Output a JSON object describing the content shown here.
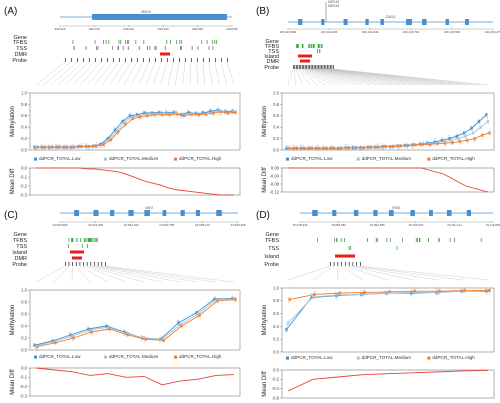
{
  "chart_data": [
    {
      "type": "line",
      "panel_label": "(A)",
      "gene_name": "MSI16",
      "coordinate_ticks": [
        "949,429",
        "949,705",
        "949,941",
        "949,349",
        "949,550",
        "949,658"
      ],
      "track_labels": [
        "Gene",
        "TFBS",
        "TSS",
        "DMR",
        "Probe"
      ],
      "ylabel": "Methylation",
      "diff_ylabel": "Mean Diff",
      "ylim": [
        0.0,
        1.0
      ],
      "yticks": [
        "0.0",
        "0.2",
        "0.4",
        "0.6",
        "0.8",
        "1.0"
      ],
      "diff_ylim": [
        -0.3,
        0.0
      ],
      "diff_yticks": [
        "0.0",
        "-0.1",
        "-0.2",
        "-0.3"
      ],
      "legend": [
        "ddPCR_TOTAL.Low",
        "ddPCR_TOTAL.Medium",
        "ddPCR_TOTAL.High"
      ],
      "series": [
        {
          "name": "ddPCR_TOTAL.Low",
          "values": [
            0.05,
            0.05,
            0.05,
            0.05,
            0.05,
            0.05,
            0.06,
            0.06,
            0.07,
            0.1,
            0.2,
            0.35,
            0.5,
            0.6,
            0.62,
            0.65,
            0.65,
            0.66,
            0.65,
            0.66,
            0.62,
            0.66,
            0.64,
            0.65,
            0.68,
            0.7,
            0.67,
            0.68
          ]
        },
        {
          "name": "ddPCR_TOTAL.Medium",
          "values": [
            0.05,
            0.05,
            0.05,
            0.05,
            0.05,
            0.05,
            0.06,
            0.06,
            0.07,
            0.1,
            0.2,
            0.33,
            0.48,
            0.58,
            0.6,
            0.63,
            0.64,
            0.65,
            0.64,
            0.65,
            0.61,
            0.65,
            0.63,
            0.64,
            0.67,
            0.69,
            0.66,
            0.67
          ]
        },
        {
          "name": "ddPCR_TOTAL.High",
          "values": [
            0.05,
            0.05,
            0.05,
            0.05,
            0.05,
            0.05,
            0.06,
            0.06,
            0.07,
            0.1,
            0.18,
            0.32,
            0.45,
            0.55,
            0.58,
            0.6,
            0.62,
            0.62,
            0.62,
            0.63,
            0.6,
            0.63,
            0.62,
            0.63,
            0.65,
            0.67,
            0.65,
            0.66
          ]
        }
      ],
      "diff": [
        0.0,
        0.0,
        0.0,
        0.0,
        0.0,
        0.0,
        0.0,
        -0.01,
        -0.01,
        -0.02,
        -0.03,
        -0.04,
        -0.06,
        -0.09,
        -0.12,
        -0.15,
        -0.17,
        -0.19,
        -0.22,
        -0.24,
        -0.25,
        -0.26,
        -0.27,
        -0.28,
        -0.29,
        -0.3,
        -0.3,
        -0.3
      ]
    },
    {
      "type": "line",
      "panel_label": "(B)",
      "gene_name": "ZAK14",
      "above_labels": [
        "MIR143",
        "MIR145"
      ],
      "coordinate_ticks": [
        "160,115,584",
        "160,120,306",
        "160,131,049",
        "160,136,791",
        "160,149,533",
        "160,154,275"
      ],
      "track_labels": [
        "Gene",
        "TFBS",
        "TSS",
        "Island",
        "DMR",
        "Probe"
      ],
      "ylabel": "Methylation",
      "diff_ylabel": "Mean Diff",
      "ylim": [
        0.0,
        1.0
      ],
      "yticks": [
        "0.0",
        "0.2",
        "0.4",
        "0.6",
        "0.8",
        "1.0"
      ],
      "diff_ylim": [
        -0.12,
        0.0
      ],
      "diff_yticks": [
        "0.00",
        "-0.04",
        "-0.08",
        "-0.12"
      ],
      "legend": [
        "ddPCR_TOTAL.Low",
        "ddPCR_TOTAL.Medium",
        "ddPCR_TOTAL.High"
      ],
      "series": [
        {
          "name": "ddPCR_TOTAL.Low",
          "values": [
            0.03,
            0.03,
            0.03,
            0.03,
            0.03,
            0.03,
            0.03,
            0.03,
            0.04,
            0.04,
            0.04,
            0.05,
            0.05,
            0.06,
            0.06,
            0.07,
            0.08,
            0.09,
            0.1,
            0.12,
            0.14,
            0.17,
            0.2,
            0.24,
            0.3,
            0.38,
            0.5,
            0.62
          ]
        },
        {
          "name": "ddPCR_TOTAL.Medium",
          "values": [
            0.03,
            0.03,
            0.03,
            0.03,
            0.03,
            0.03,
            0.03,
            0.03,
            0.04,
            0.04,
            0.04,
            0.05,
            0.05,
            0.06,
            0.06,
            0.07,
            0.08,
            0.09,
            0.1,
            0.11,
            0.13,
            0.15,
            0.17,
            0.2,
            0.24,
            0.3,
            0.4,
            0.5
          ]
        },
        {
          "name": "ddPCR_TOTAL.High",
          "values": [
            0.03,
            0.03,
            0.03,
            0.03,
            0.03,
            0.03,
            0.03,
            0.03,
            0.04,
            0.04,
            0.04,
            0.05,
            0.05,
            0.06,
            0.06,
            0.07,
            0.08,
            0.09,
            0.1,
            0.1,
            0.11,
            0.12,
            0.13,
            0.15,
            0.17,
            0.2,
            0.26,
            0.3
          ]
        }
      ],
      "diff": [
        0.0,
        0.0,
        0.0,
        0.0,
        0.0,
        0.0,
        0.0,
        0.0,
        0.0,
        0.0,
        0.0,
        0.0,
        0.0,
        0.0,
        0.0,
        0.0,
        0.0,
        0.0,
        0.0,
        -0.01,
        -0.02,
        -0.03,
        -0.05,
        -0.07,
        -0.09,
        -0.1,
        -0.11,
        -0.12
      ]
    },
    {
      "type": "line",
      "panel_label": "(C)",
      "gene_name": "VAV3",
      "coordinate_ticks": [
        "24,629,680",
        "24,631,045",
        "24,632,400",
        "24,633,755",
        "24,635,110",
        "24,636,465"
      ],
      "track_labels": [
        "Gene",
        "TFBS",
        "TSS",
        "Island",
        "DMR",
        "Probe"
      ],
      "ylabel": "Methylation",
      "diff_ylabel": "Mean Diff",
      "ylim": [
        0.0,
        1.0
      ],
      "yticks": [
        "0.0",
        "0.2",
        "0.4",
        "0.6",
        "0.8",
        "1.0"
      ],
      "diff_ylim": [
        -0.3,
        0.0
      ],
      "diff_yticks": [
        "0.0",
        "-0.1",
        "-0.2",
        "-0.3"
      ],
      "legend": [
        "ddPCR_TOTAL.Low",
        "ddPCR_TOTAL.Medium",
        "ddPCR_TOTAL.High"
      ],
      "series": [
        {
          "name": "ddPCR_TOTAL.Low",
          "values": [
            0.08,
            0.15,
            0.25,
            0.35,
            0.4,
            0.3,
            0.2,
            0.18,
            0.45,
            0.62,
            0.85,
            0.86
          ]
        },
        {
          "name": "ddPCR_TOTAL.Medium",
          "values": [
            0.07,
            0.14,
            0.23,
            0.33,
            0.38,
            0.28,
            0.2,
            0.18,
            0.42,
            0.6,
            0.84,
            0.85
          ]
        },
        {
          "name": "ddPCR_TOTAL.High",
          "values": [
            0.06,
            0.12,
            0.2,
            0.3,
            0.35,
            0.25,
            0.18,
            0.16,
            0.4,
            0.58,
            0.82,
            0.84
          ]
        }
      ],
      "diff": [
        0.0,
        -0.02,
        -0.04,
        -0.08,
        -0.06,
        -0.1,
        -0.09,
        -0.18,
        -0.14,
        -0.12,
        -0.08,
        -0.07
      ]
    },
    {
      "type": "line",
      "panel_label": "(D)",
      "gene_name": "IFI44L",
      "coordinate_ticks": [
        "79,078,336",
        "79,086,581",
        "79,094,825",
        "79,103,070",
        "79,111,314",
        "79,119,559"
      ],
      "track_labels": [
        "Gene",
        "TFBS",
        "TSS",
        "Island",
        "Probe"
      ],
      "ylabel": "Methylation",
      "diff_ylabel": "Mean Diff",
      "ylim": [
        0.0,
        1.0
      ],
      "yticks": [
        "0.0",
        "0.2",
        "0.4",
        "0.6",
        "0.8",
        "1.0"
      ],
      "diff_ylim": [
        -0.6,
        0.0
      ],
      "diff_yticks": [
        "0.0",
        "-0.2",
        "-0.4",
        "-0.6"
      ],
      "legend": [
        "ddPCR_TOTAL.Low",
        "ddPCR_TOTAL.Medium",
        "ddPCR_TOTAL.High"
      ],
      "series": [
        {
          "name": "ddPCR_TOTAL.Low",
          "values": [
            0.35,
            0.85,
            0.88,
            0.9,
            0.92,
            0.92,
            0.93,
            0.95,
            0.95
          ]
        },
        {
          "name": "ddPCR_TOTAL.Medium",
          "values": [
            0.45,
            0.86,
            0.89,
            0.9,
            0.92,
            0.93,
            0.93,
            0.95,
            0.96
          ]
        },
        {
          "name": "ddPCR_TOTAL.High",
          "values": [
            0.82,
            0.9,
            0.92,
            0.93,
            0.94,
            0.95,
            0.95,
            0.96,
            0.96
          ]
        }
      ],
      "diff": [
        -0.45,
        -0.2,
        -0.15,
        -0.1,
        -0.08,
        -0.06,
        -0.04,
        -0.02,
        -0.01
      ]
    }
  ],
  "colors": {
    "low": "#3b8fd0",
    "medium": "#a7c3d8",
    "high": "#f07a2e",
    "diff": "#e8403a",
    "gene": "#4a8fcb",
    "tfbs": "#3aa33a",
    "dmr": "#e81e1e"
  }
}
